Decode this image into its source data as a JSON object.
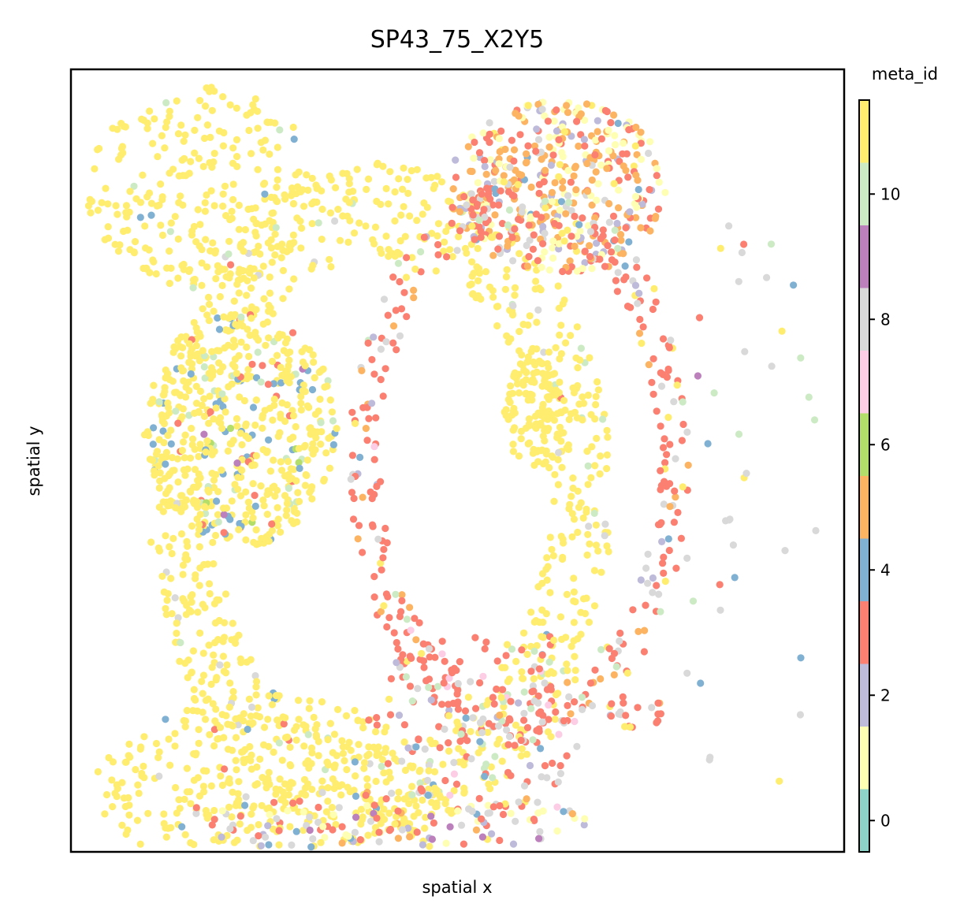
{
  "chart_data": {
    "type": "scatter",
    "title": "SP43_75_X2Y5",
    "xlabel": "spatial x",
    "ylabel": "spatial y",
    "xlim": [
      0,
      100
    ],
    "ylim": [
      0,
      100
    ],
    "x_ticks_shown": false,
    "y_ticks_shown": false,
    "grid": false,
    "colorbar": {
      "title": "meta_id",
      "range": [
        -0.5,
        11.5
      ],
      "ticks": [
        0,
        2,
        4,
        6,
        8,
        10
      ],
      "tick_labels": [
        "0",
        "2",
        "4",
        "6",
        "8",
        "10"
      ],
      "palette": [
        "#8dd3c7",
        "#ffffb3",
        "#bebada",
        "#fb8072",
        "#80b1d3",
        "#fdb462",
        "#b3de69",
        "#fccde5",
        "#d9d9d9",
        "#bc80bd",
        "#ccebc5",
        "#ffed6f"
      ]
    },
    "point_groups": [
      {
        "region": "left-circle",
        "cx": 22,
        "cy": 54,
        "rx": 12.5,
        "ry": 15,
        "n": 520,
        "inner": 0,
        "mix": [
          [
            11,
            0.78
          ],
          [
            4,
            0.1
          ],
          [
            10,
            0.05
          ],
          [
            3,
            0.04
          ],
          [
            9,
            0.015
          ],
          [
            6,
            0.015
          ]
        ]
      },
      {
        "region": "top-left-block",
        "cx": 17,
        "cy": 85,
        "rx": 15,
        "ry": 13,
        "n": 260,
        "inner": 0,
        "mix": [
          [
            11,
            0.97
          ],
          [
            10,
            0.02
          ],
          [
            4,
            0.01
          ]
        ]
      },
      {
        "region": "central-arc",
        "cx": 40,
        "cy": 45,
        "rx": 30,
        "ry": 43,
        "n": 900,
        "inner": 0.72,
        "mix": [
          [
            11,
            0.9
          ],
          [
            10,
            0.04
          ],
          [
            8,
            0.03
          ],
          [
            3,
            0.02
          ],
          [
            4,
            0.01
          ]
        ]
      },
      {
        "region": "central-nucleus",
        "cx": 60,
        "cy": 56,
        "rx": 4,
        "ry": 7,
        "n": 110,
        "inner": 0,
        "mix": [
          [
            11,
            1.0
          ]
        ]
      },
      {
        "region": "top-right-cluster",
        "cx": 63,
        "cy": 85,
        "rx": 14,
        "ry": 11,
        "n": 420,
        "inner": 0,
        "mix": [
          [
            5,
            0.32
          ],
          [
            1,
            0.25
          ],
          [
            3,
            0.2
          ],
          [
            2,
            0.1
          ],
          [
            8,
            0.06
          ],
          [
            11,
            0.05
          ],
          [
            4,
            0.02
          ]
        ]
      },
      {
        "region": "right-arc",
        "cx": 58,
        "cy": 50,
        "rx": 22,
        "ry": 36,
        "n": 380,
        "inner": 0.82,
        "mix": [
          [
            3,
            0.58
          ],
          [
            8,
            0.16
          ],
          [
            5,
            0.08
          ],
          [
            11,
            0.07
          ],
          [
            10,
            0.05
          ],
          [
            2,
            0.03
          ],
          [
            4,
            0.02
          ],
          [
            7,
            0.01
          ]
        ]
      },
      {
        "region": "bottom-left-arc",
        "cx": 25,
        "cy": 8,
        "rx": 22,
        "ry": 12,
        "n": 330,
        "inner": 0,
        "mix": [
          [
            11,
            0.93
          ],
          [
            4,
            0.02
          ],
          [
            10,
            0.02
          ],
          [
            3,
            0.02
          ],
          [
            8,
            0.01
          ]
        ]
      },
      {
        "region": "bottom-band",
        "cx": 40,
        "cy": 4,
        "rx": 27,
        "ry": 4,
        "n": 140,
        "inner": 0,
        "mix": [
          [
            3,
            0.3
          ],
          [
            1,
            0.15
          ],
          [
            8,
            0.14
          ],
          [
            2,
            0.1
          ],
          [
            5,
            0.09
          ],
          [
            11,
            0.08
          ],
          [
            4,
            0.08
          ],
          [
            9,
            0.03
          ],
          [
            7,
            0.03
          ]
        ]
      },
      {
        "region": "lower-middle-scatter",
        "cx": 52,
        "cy": 16,
        "rx": 14,
        "ry": 12,
        "n": 150,
        "inner": 0,
        "mix": [
          [
            3,
            0.5
          ],
          [
            8,
            0.2
          ],
          [
            10,
            0.1
          ],
          [
            11,
            0.08
          ],
          [
            2,
            0.05
          ],
          [
            4,
            0.04
          ],
          [
            7,
            0.03
          ]
        ]
      },
      {
        "region": "bottom-right-small-cluster",
        "cx": 73,
        "cy": 18,
        "rx": 3.5,
        "ry": 2.5,
        "n": 22,
        "inner": 0,
        "mix": [
          [
            3,
            0.4
          ],
          [
            8,
            0.25
          ],
          [
            2,
            0.15
          ],
          [
            5,
            0.1
          ],
          [
            11,
            0.1
          ]
        ]
      },
      {
        "region": "right-sparse",
        "cx": 88,
        "cy": 45,
        "rx": 10,
        "ry": 40,
        "n": 40,
        "inner": 0,
        "mix": [
          [
            8,
            0.6
          ],
          [
            11,
            0.12
          ],
          [
            4,
            0.1
          ],
          [
            10,
            0.08
          ],
          [
            9,
            0.06
          ],
          [
            3,
            0.04
          ]
        ]
      }
    ]
  }
}
